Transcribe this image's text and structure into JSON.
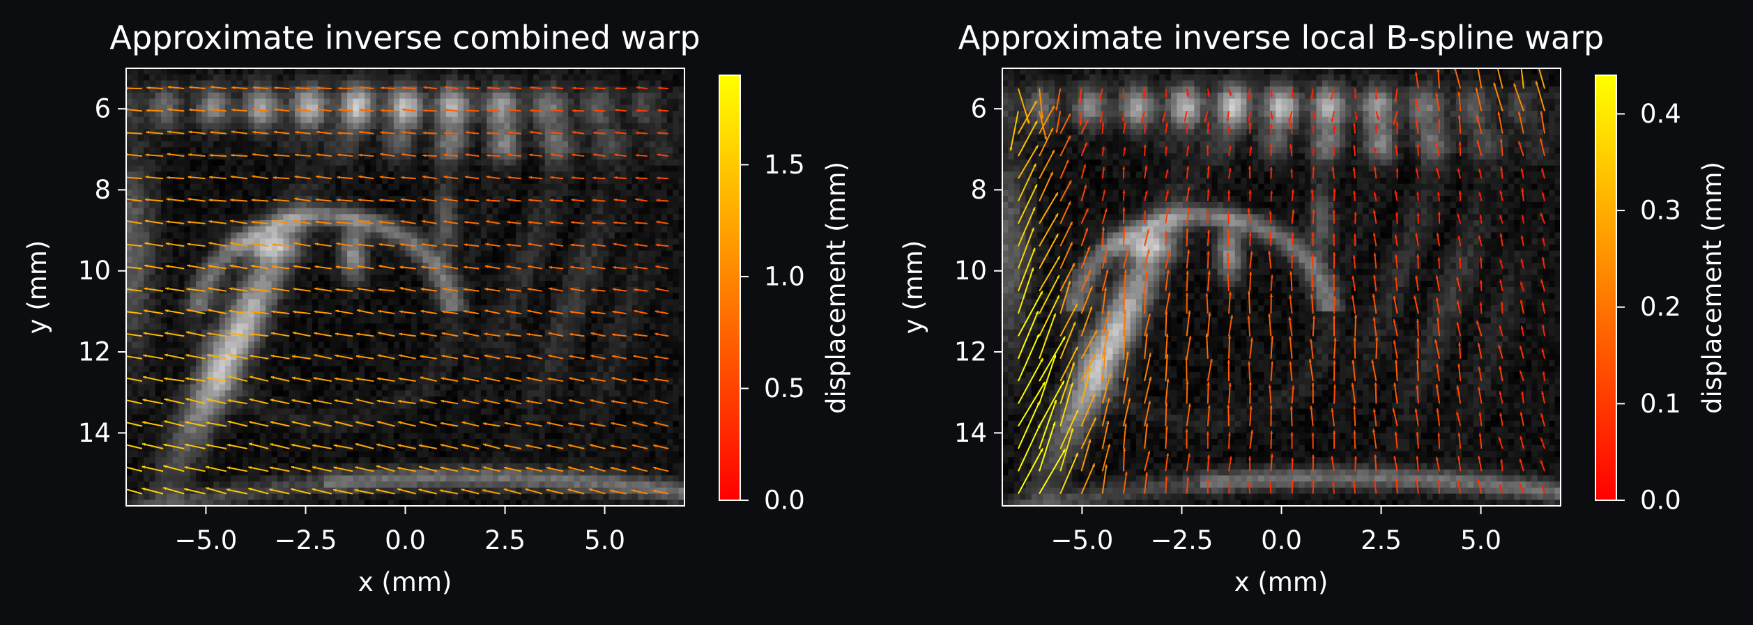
{
  "figure_background": "#0b0d10",
  "text_color": "#ffffff",
  "chart_data": [
    {
      "type": "heatmap",
      "subtype": "grayscale image with quiver (displacement arrows) overlay",
      "title": "Approximate inverse combined warp",
      "xlabel": "x (mm)",
      "ylabel": "y (mm)",
      "xlim": [
        -7.0,
        7.0
      ],
      "ylim": [
        15.8,
        5.0
      ],
      "y_inverted": true,
      "x_ticks": [
        -5.0,
        -2.5,
        0.0,
        2.5,
        5.0
      ],
      "x_tick_labels": [
        "−5.0",
        "−2.5",
        "0.0",
        "2.5",
        "5.0"
      ],
      "y_ticks": [
        6,
        8,
        10,
        12,
        14
      ],
      "y_tick_labels": [
        "6",
        "8",
        "10",
        "12",
        "14"
      ],
      "image_colormap": "gray",
      "arrow_colormap": "autumn",
      "arrow_pattern": "global: mostly leftward, slightly downward arrows, longer and more yellow toward the lower-left",
      "colorbar": {
        "label": "displacement (mm)",
        "range": [
          0.0,
          1.9
        ],
        "ticks": [
          0.0,
          0.5,
          1.0,
          1.5
        ],
        "tick_labels": [
          "0.0",
          "0.5",
          "1.0",
          "1.5"
        ],
        "colors": [
          "#ff0000",
          "#ffff00"
        ]
      }
    },
    {
      "type": "heatmap",
      "subtype": "grayscale image with quiver (displacement arrows) overlay",
      "title": "Approximate inverse local B-spline warp",
      "xlabel": "x (mm)",
      "ylabel": "y (mm)",
      "xlim": [
        -7.0,
        7.0
      ],
      "ylim": [
        15.8,
        5.0
      ],
      "y_inverted": true,
      "x_ticks": [
        -5.0,
        -2.5,
        0.0,
        2.5,
        5.0
      ],
      "x_tick_labels": [
        "−5.0",
        "−2.5",
        "0.0",
        "2.5",
        "5.0"
      ],
      "y_ticks": [
        6,
        8,
        10,
        12,
        14
      ],
      "y_tick_labels": [
        "6",
        "8",
        "10",
        "12",
        "14"
      ],
      "image_colormap": "gray",
      "arrow_colormap": "autumn",
      "arrow_pattern": "local: mostly upward arrows, longest and most yellow along the left edge, the lower-left corner and the upper-right corner",
      "colorbar": {
        "label": "displacement (mm)",
        "range": [
          0.0,
          0.44
        ],
        "ticks": [
          0.0,
          0.1,
          0.2,
          0.3,
          0.4
        ],
        "tick_labels": [
          "0.0",
          "0.1",
          "0.2",
          "0.3",
          "0.4"
        ],
        "colors": [
          "#ff0000",
          "#ffff00"
        ]
      }
    }
  ]
}
